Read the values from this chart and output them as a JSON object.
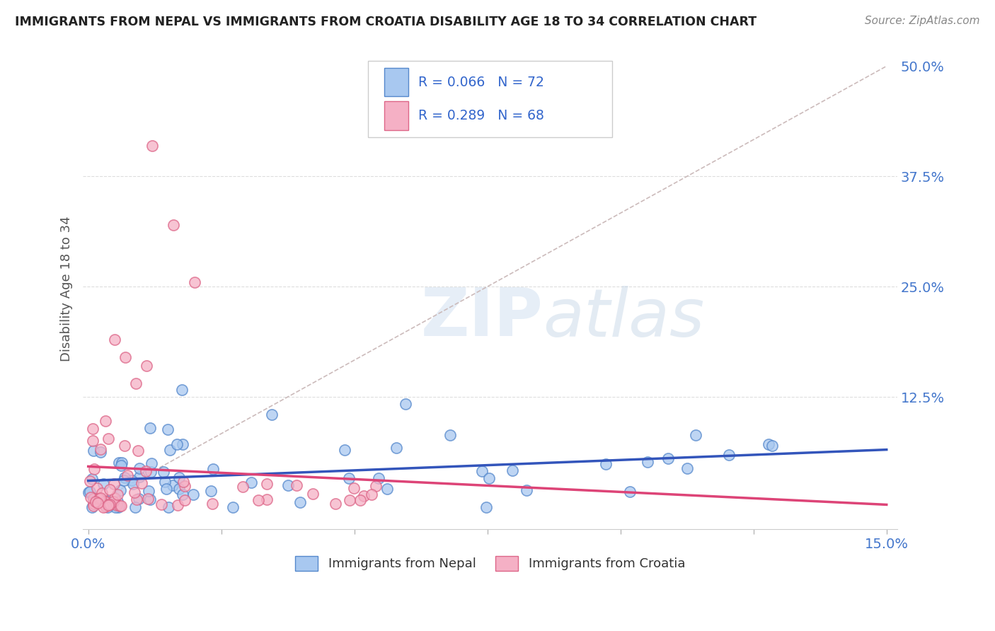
{
  "title": "IMMIGRANTS FROM NEPAL VS IMMIGRANTS FROM CROATIA DISABILITY AGE 18 TO 34 CORRELATION CHART",
  "source": "Source: ZipAtlas.com",
  "ylabel": "Disability Age 18 to 34",
  "legend1_label": "Immigrants from Nepal",
  "legend2_label": "Immigrants from Croatia",
  "r1": 0.066,
  "n1": 72,
  "r2": 0.289,
  "n2": 68,
  "color_nepal": "#a8c8f0",
  "color_croatia": "#f5b0c5",
  "color_nepal_edge": "#5588cc",
  "color_croatia_edge": "#dd6688",
  "color_nepal_line": "#3355bb",
  "color_croatia_line": "#dd4477",
  "color_refline": "#ccbbbb",
  "xmax": 0.15,
  "ymax": 0.5,
  "yticks": [
    0.0,
    0.125,
    0.25,
    0.375,
    0.5
  ],
  "ytick_labels": [
    "",
    "12.5%",
    "25.0%",
    "37.5%",
    "50.0%"
  ],
  "xtick_left_label": "0.0%",
  "xtick_right_label": "15.0%",
  "watermark_zip": "ZIP",
  "watermark_atlas": "atlas"
}
